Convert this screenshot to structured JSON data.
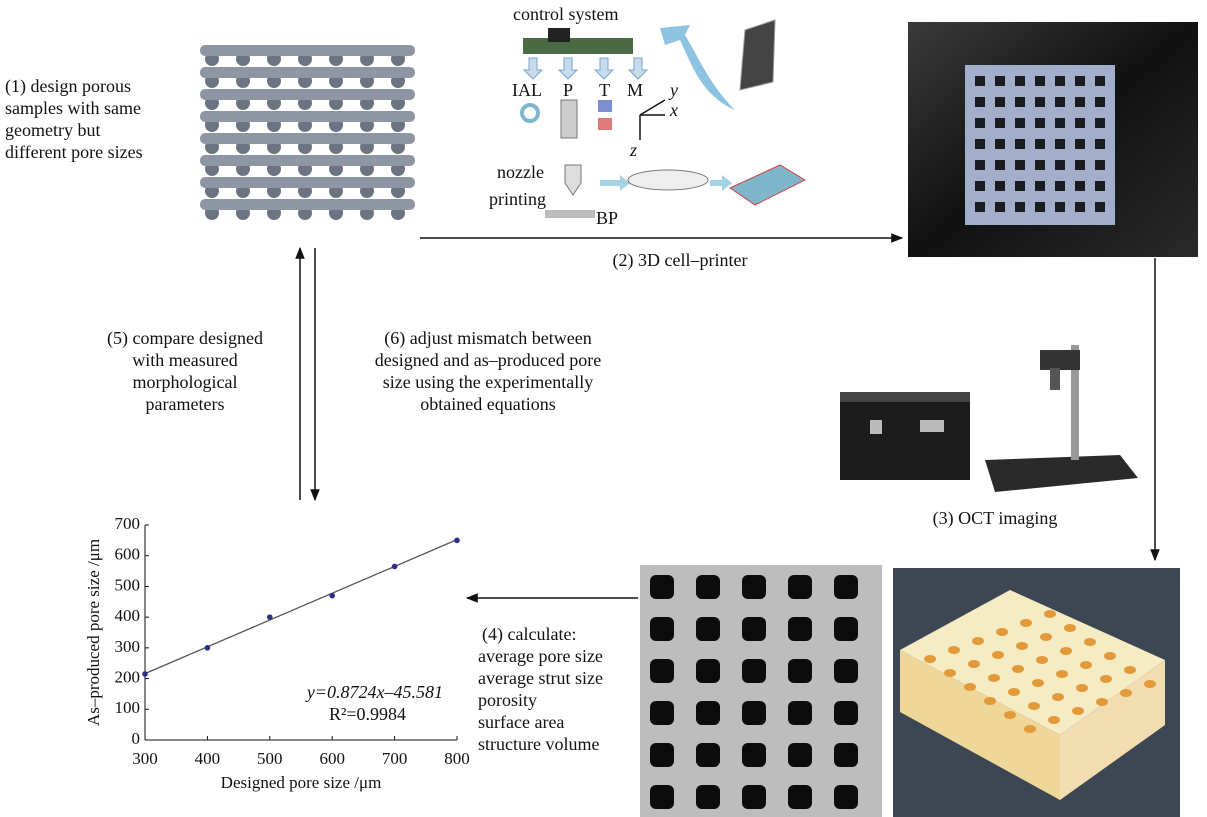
{
  "step1": {
    "lines": [
      "(1) design porous",
      "samples with same",
      "geometry but",
      "different pore sizes"
    ]
  },
  "printer": {
    "title": "control system",
    "labels": [
      "IAL",
      "P",
      "T",
      "M"
    ],
    "axes": [
      "y",
      "x",
      "z"
    ],
    "nozzle": "nozzle",
    "printing": "printing",
    "platform": "BP"
  },
  "step2": "(2) 3D cell–printer",
  "step3": "(3) OCT imaging",
  "step4": {
    "lines": [
      "(4) calculate:",
      "average pore size",
      "average strut size",
      "porosity",
      "surface area",
      "structure volume"
    ]
  },
  "step5": {
    "lines": [
      "(5) compare designed",
      "with measured",
      "morphological",
      "parameters"
    ]
  },
  "step6": {
    "lines": [
      "(6) adjust mismatch between",
      "designed and as–produced pore",
      "size using the experimentally",
      "obtained equations"
    ]
  },
  "chart_data": {
    "type": "scatter",
    "x_label": "Designed pore size /μm",
    "y_label": "As–produced pore size /μm",
    "x": [
      300,
      400,
      500,
      600,
      700,
      800
    ],
    "values": [
      215,
      300,
      400,
      470,
      565,
      650
    ],
    "color": "#2b2f8a",
    "line_color": "#555555",
    "fit": {
      "slope": 0.8724,
      "intercept": -45.581
    },
    "equation": "y=0.8724x–45.581",
    "r_squared": "R²=0.9984",
    "xlim": [
      300,
      800
    ],
    "ylim": [
      0,
      700
    ],
    "xticks": [
      300,
      400,
      500,
      600,
      700,
      800
    ],
    "yticks": [
      0,
      100,
      200,
      300,
      400,
      500,
      600,
      700
    ]
  }
}
